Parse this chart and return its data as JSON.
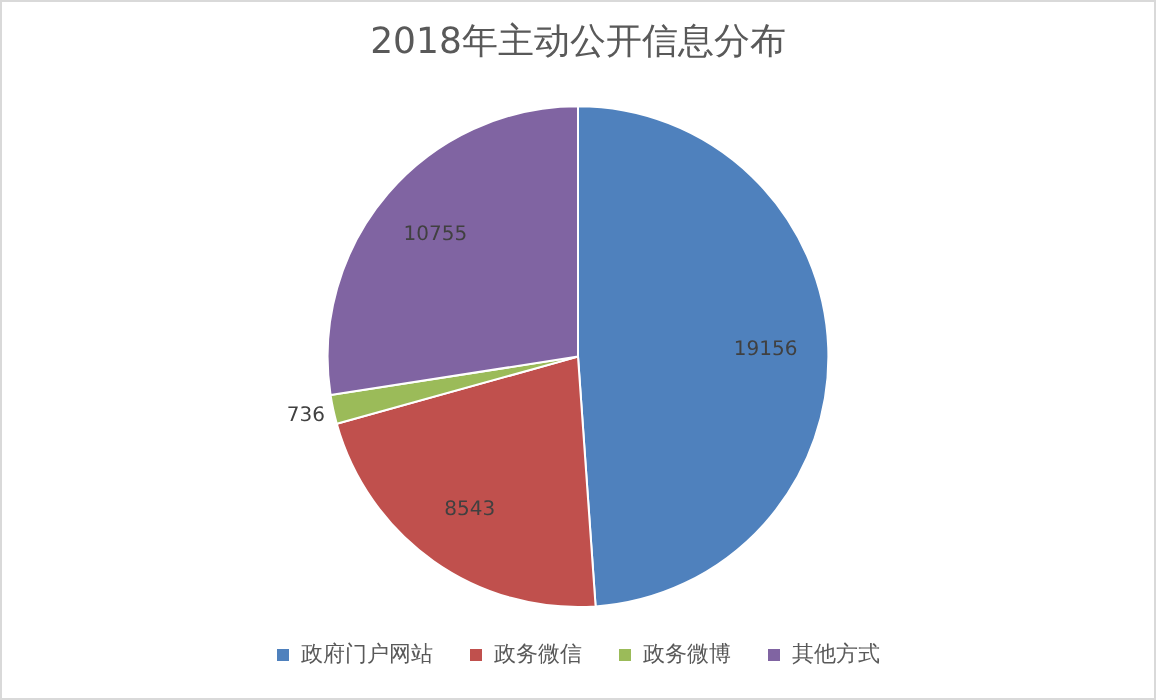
{
  "chart_data": {
    "type": "pie",
    "title": "2018年主动公开信息分布",
    "categories": [
      "政府门户网站",
      "政务微信",
      "政务微博",
      "其他方式"
    ],
    "values": [
      19156,
      8543,
      736,
      10755
    ],
    "colors": [
      "#4f81bd",
      "#c0504d",
      "#9bbb59",
      "#8064a2"
    ],
    "data_labels": true,
    "legend": "bottom"
  }
}
